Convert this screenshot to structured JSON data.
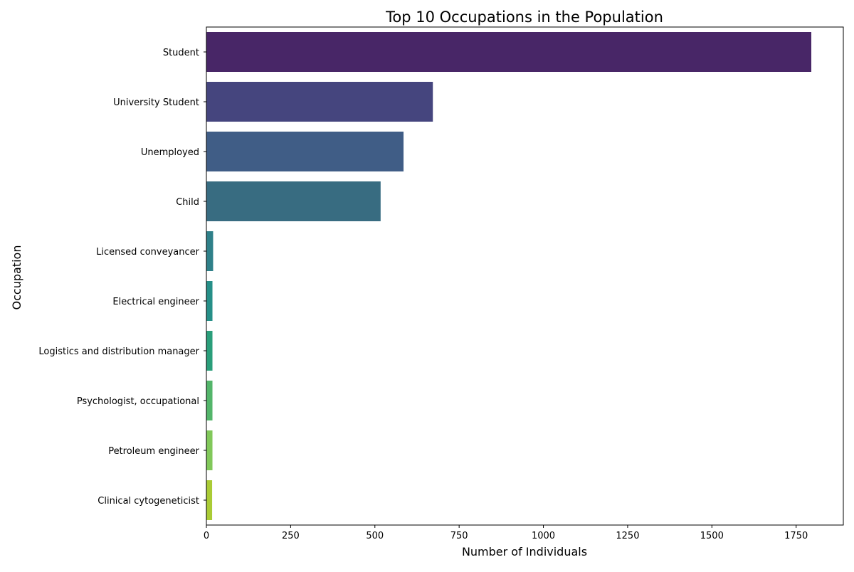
{
  "chart_data": {
    "type": "bar",
    "orientation": "horizontal",
    "title": "Top 10 Occupations in the Population",
    "xlabel": "Number of Individuals",
    "ylabel": "Occupation",
    "categories": [
      "Student",
      "University Student",
      "Unemployed",
      "Child",
      "Licensed conveyancer",
      "Electrical engineer",
      "Logistics and distribution manager",
      "Psychologist, occupational",
      "Petroleum engineer",
      "Clinical cytogeneticist"
    ],
    "values": [
      1795,
      672,
      585,
      517,
      20,
      18,
      18,
      18,
      18,
      17
    ],
    "colors": [
      "#482667",
      "#45457e",
      "#405d86",
      "#386c81",
      "#2f8089",
      "#268f88",
      "#2a9e7a",
      "#53b56a",
      "#81c85a",
      "#aacb35"
    ],
    "xlim": [
      0,
      1890
    ],
    "xticks": [
      0,
      250,
      500,
      750,
      1000,
      1250,
      1500,
      1750
    ],
    "grid": false,
    "legend": "none"
  }
}
